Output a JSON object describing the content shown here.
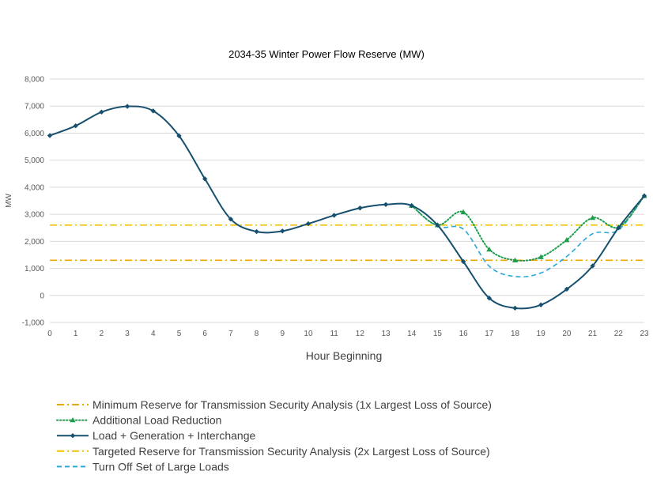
{
  "chart_data": {
    "type": "line",
    "title": "2034-35 Winter Power Flow Reserve (MW)",
    "xlabel": "Hour Beginning",
    "ylabel": "MW",
    "ylim": [
      -1000,
      8000
    ],
    "ytick_step": 1000,
    "yticks": [
      "-1,000",
      "0",
      "1,000",
      "2,000",
      "3,000",
      "4,000",
      "5,000",
      "6,000",
      "7,000",
      "8,000"
    ],
    "x": [
      0,
      1,
      2,
      3,
      4,
      5,
      6,
      7,
      8,
      9,
      10,
      11,
      12,
      13,
      14,
      15,
      16,
      17,
      18,
      19,
      20,
      21,
      22,
      23
    ],
    "xticks": [
      "0",
      "1",
      "2",
      "3",
      "4",
      "5",
      "6",
      "7",
      "8",
      "9",
      "10",
      "11",
      "12",
      "13",
      "14",
      "15",
      "16",
      "17",
      "18",
      "19",
      "20",
      "21",
      "22",
      "23"
    ],
    "grid": "horizontal",
    "legend_position": "bottom",
    "series": [
      {
        "key": "min_reserve",
        "name": "Minimum Reserve for Transmission Security Analysis (1x Largest Loss of Source)",
        "color": "#f0a800",
        "style": "dashdot",
        "marker": "none",
        "x": [
          0,
          23
        ],
        "values": [
          1300,
          1300
        ]
      },
      {
        "key": "additional",
        "name": "Additional Load Reduction",
        "color": "#1e9e4c",
        "style": "dotted",
        "marker": "triangle",
        "x": [
          14,
          15,
          16,
          17,
          18,
          19,
          20,
          21,
          22,
          23
        ],
        "values": [
          3320,
          2600,
          3080,
          1700,
          1300,
          1420,
          2050,
          2870,
          2520,
          3680
        ]
      },
      {
        "key": "load",
        "name": "Load + Generation + Interchange",
        "color": "#17506e",
        "style": "solid",
        "marker": "diamond",
        "x": [
          0,
          1,
          2,
          3,
          4,
          5,
          6,
          7,
          8,
          9,
          10,
          11,
          12,
          13,
          14,
          15,
          16,
          17,
          18,
          19,
          20,
          21,
          22,
          23
        ],
        "values": [
          5910,
          6270,
          6780,
          6990,
          6820,
          5900,
          4310,
          2820,
          2360,
          2380,
          2650,
          2960,
          3230,
          3360,
          3320,
          2600,
          1250,
          -100,
          -470,
          -350,
          230,
          1090,
          2500,
          3680
        ]
      },
      {
        "key": "target_reserve",
        "name": "Targeted Reserve for Transmission Security Analysis (2x Largest Loss of Source)",
        "color": "#f2c200",
        "style": "dashdot",
        "marker": "none",
        "x": [
          0,
          23
        ],
        "values": [
          2600,
          2600
        ]
      },
      {
        "key": "turnoff",
        "name": "Turn Off Set of Large Loads",
        "color": "#29a7db",
        "style": "dashed",
        "marker": "none",
        "x": [
          14,
          15,
          16,
          17,
          18,
          19,
          20,
          21,
          22,
          23
        ],
        "values": [
          3320,
          2550,
          2450,
          1080,
          700,
          830,
          1440,
          2280,
          2420,
          3680
        ]
      }
    ]
  }
}
